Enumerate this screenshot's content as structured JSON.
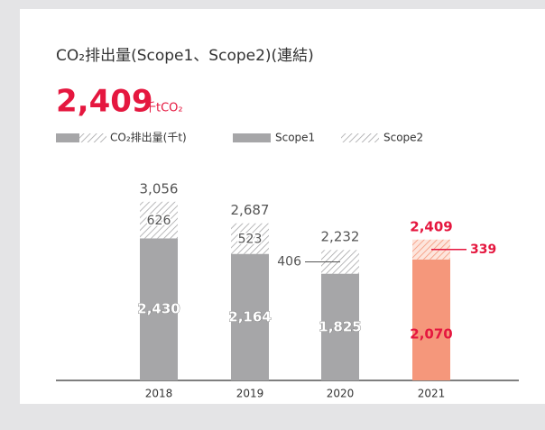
{
  "chart_data": {
    "type": "stacked_bar",
    "title": "CO₂排出量(Scope1、Scope2)(連結)",
    "headline": "2,409",
    "headline_unit": "千tCO₂",
    "total_legend": "CO₂排出量(千t)",
    "categories": [
      "2018",
      "2019",
      "2020",
      "2021"
    ],
    "series": [
      {
        "name": "Scope1",
        "color": "#a6a6a8",
        "colors": [
          "#a6a6a8",
          "#a6a6a8",
          "#a6a6a8",
          "#f5977b"
        ],
        "values": [
          2430,
          2164,
          1825,
          2070
        ],
        "value_labels": [
          "2,430",
          "2,164",
          "1,825",
          "2,070"
        ]
      },
      {
        "name": "Scope2",
        "color": "#a6a6a8",
        "colors": [
          "#a6a6a8",
          "#a6a6a8",
          "#a6a6a8",
          "#f5977b"
        ],
        "values": [
          626,
          523,
          406,
          339
        ],
        "value_labels": [
          "626",
          "523",
          "406",
          "339"
        ]
      }
    ],
    "totals": [
      3056,
      2687,
      2232,
      2409
    ],
    "total_labels": [
      "3,056",
      "2,687",
      "2,232",
      "2,409"
    ],
    "label_colors": [
      "#555555",
      "#555555",
      "#555555",
      "#e5173f"
    ],
    "ylim": [
      0,
      3500
    ]
  }
}
